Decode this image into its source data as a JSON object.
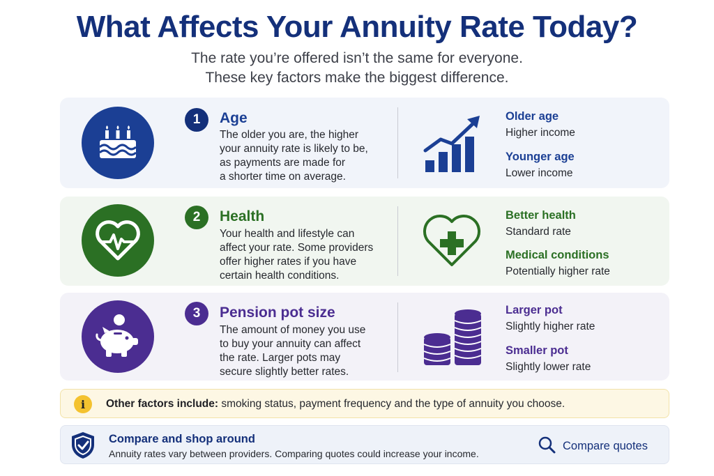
{
  "header": {
    "title": "What Affects Your Annuity Rate Today?",
    "subtitle_line1": "The rate you’re offered isn’t the same for everyone.",
    "subtitle_line2": "These key factors make the biggest difference."
  },
  "colors": {
    "navy": "#14307a",
    "age_blue": "#1b3f94",
    "health_green": "#2b7024",
    "pension_purple": "#4b2d91",
    "note_yellow": "#f4c22f"
  },
  "factors": [
    {
      "number": "1",
      "title": "Age",
      "description": "The older you are, the higher your annuity rate is likely to be, as payments are made for a shorter time on average.",
      "desc_lines": [
        "The older you are, the higher",
        "your annuity rate is likely to be,",
        "as payments are made for",
        "a shorter time on average."
      ],
      "icon": "birthday-cake-icon",
      "side_icon": "rising-bar-chart-icon",
      "side": [
        {
          "heading": "Older age",
          "value": "Higher income"
        },
        {
          "heading": "Younger age",
          "value": "Lower income"
        }
      ]
    },
    {
      "number": "2",
      "title": "Health",
      "description": "Your health and lifestyle can affect your rate. Some providers offer higher rates if you have certain health conditions.",
      "desc_lines": [
        "Your health and lifestyle can",
        "affect your rate. Some providers",
        "offer higher rates if you have",
        "certain health conditions."
      ],
      "icon": "heart-pulse-icon",
      "side_icon": "heart-cross-icon",
      "side": [
        {
          "heading": "Better health",
          "value": "Standard rate"
        },
        {
          "heading": "Medical conditions",
          "value": "Potentially higher rate"
        }
      ]
    },
    {
      "number": "3",
      "title": "Pension pot size",
      "description": "The amount of money you use to buy your annuity can affect the rate. Larger pots may secure slightly better rates.",
      "desc_lines": [
        "The amount of money you use",
        "to buy your annuity can affect",
        "the rate. Larger pots may",
        "secure slightly better rates."
      ],
      "icon": "piggy-bank-icon",
      "side_icon": "coin-stacks-icon",
      "side": [
        {
          "heading": "Larger pot",
          "value": "Slightly higher rate"
        },
        {
          "heading": "Smaller pot",
          "value": "Slightly lower rate"
        }
      ]
    }
  ],
  "note": {
    "icon": "info-icon",
    "icon_glyph": "i",
    "label": "Other factors include:",
    "text": " smoking status, payment frequency and the type of annuity you choose."
  },
  "footer": {
    "icon": "shield-check-icon",
    "title": "Compare and shop around",
    "text": "Annuity rates vary between providers. Comparing quotes could increase your income.",
    "action_icon": "search-icon",
    "action_label": "Compare quotes"
  }
}
